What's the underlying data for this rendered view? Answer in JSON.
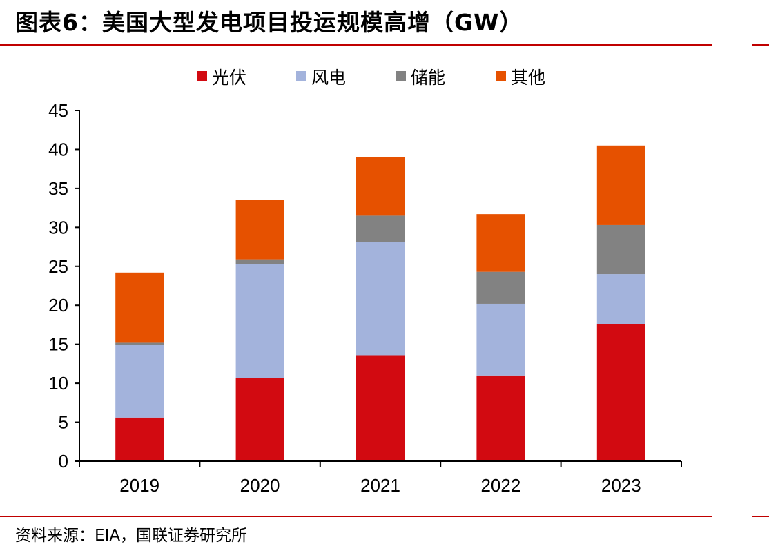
{
  "figure": {
    "title": "图表6：美国大型发电项目投运规模高增（GW）",
    "source": "资料来源：EIA，国联证券研究所"
  },
  "colors": {
    "rule": "#c00000",
    "axis": "#000000"
  },
  "chart_data": {
    "type": "bar",
    "stacked": true,
    "categories": [
      "2019",
      "2020",
      "2021",
      "2022",
      "2023"
    ],
    "series": [
      {
        "name": "光伏",
        "color": "#d20a11",
        "values": [
          5.6,
          10.7,
          13.6,
          11.0,
          17.6
        ]
      },
      {
        "name": "风电",
        "color": "#a3b3dc",
        "values": [
          9.3,
          14.6,
          14.5,
          9.2,
          6.4
        ]
      },
      {
        "name": "储能",
        "color": "#828282",
        "values": [
          0.3,
          0.6,
          3.4,
          4.1,
          6.3
        ]
      },
      {
        "name": "其他",
        "color": "#e65100",
        "values": [
          9.0,
          7.6,
          7.5,
          7.4,
          10.2
        ]
      }
    ],
    "ylim": [
      0,
      45
    ],
    "yticks": [
      0,
      5,
      10,
      15,
      20,
      25,
      30,
      35,
      40,
      45
    ],
    "xlabel": "",
    "ylabel": "",
    "legend_position": "top-center",
    "grid": false
  }
}
